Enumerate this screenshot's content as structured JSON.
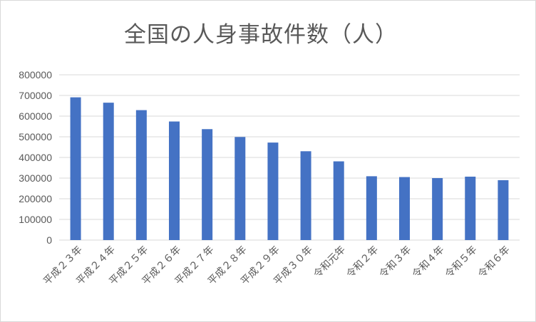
{
  "chart_data": {
    "type": "bar",
    "title": "全国の人身事故件数（人）",
    "categories": [
      "平成２３年",
      "平成２４年",
      "平成２５年",
      "平成２６年",
      "平成２７年",
      "平成２８年",
      "平成２９年",
      "平成３０年",
      "令和元年",
      "令和２年",
      "令和３年",
      "令和４年",
      "令和５年",
      "令和６年"
    ],
    "values": [
      691000,
      665000,
      629000,
      574000,
      537000,
      499000,
      472000,
      430000,
      381000,
      309000,
      305000,
      300000,
      307000,
      290000
    ],
    "ylim": [
      0,
      800000
    ],
    "yticks": [
      "0",
      "100000",
      "200000",
      "300000",
      "400000",
      "500000",
      "600000",
      "700000",
      "800000"
    ],
    "xlabel": "",
    "ylabel": "",
    "grid": true,
    "bar_color": "#4472c4",
    "grid_color": "#d9d9d9"
  }
}
